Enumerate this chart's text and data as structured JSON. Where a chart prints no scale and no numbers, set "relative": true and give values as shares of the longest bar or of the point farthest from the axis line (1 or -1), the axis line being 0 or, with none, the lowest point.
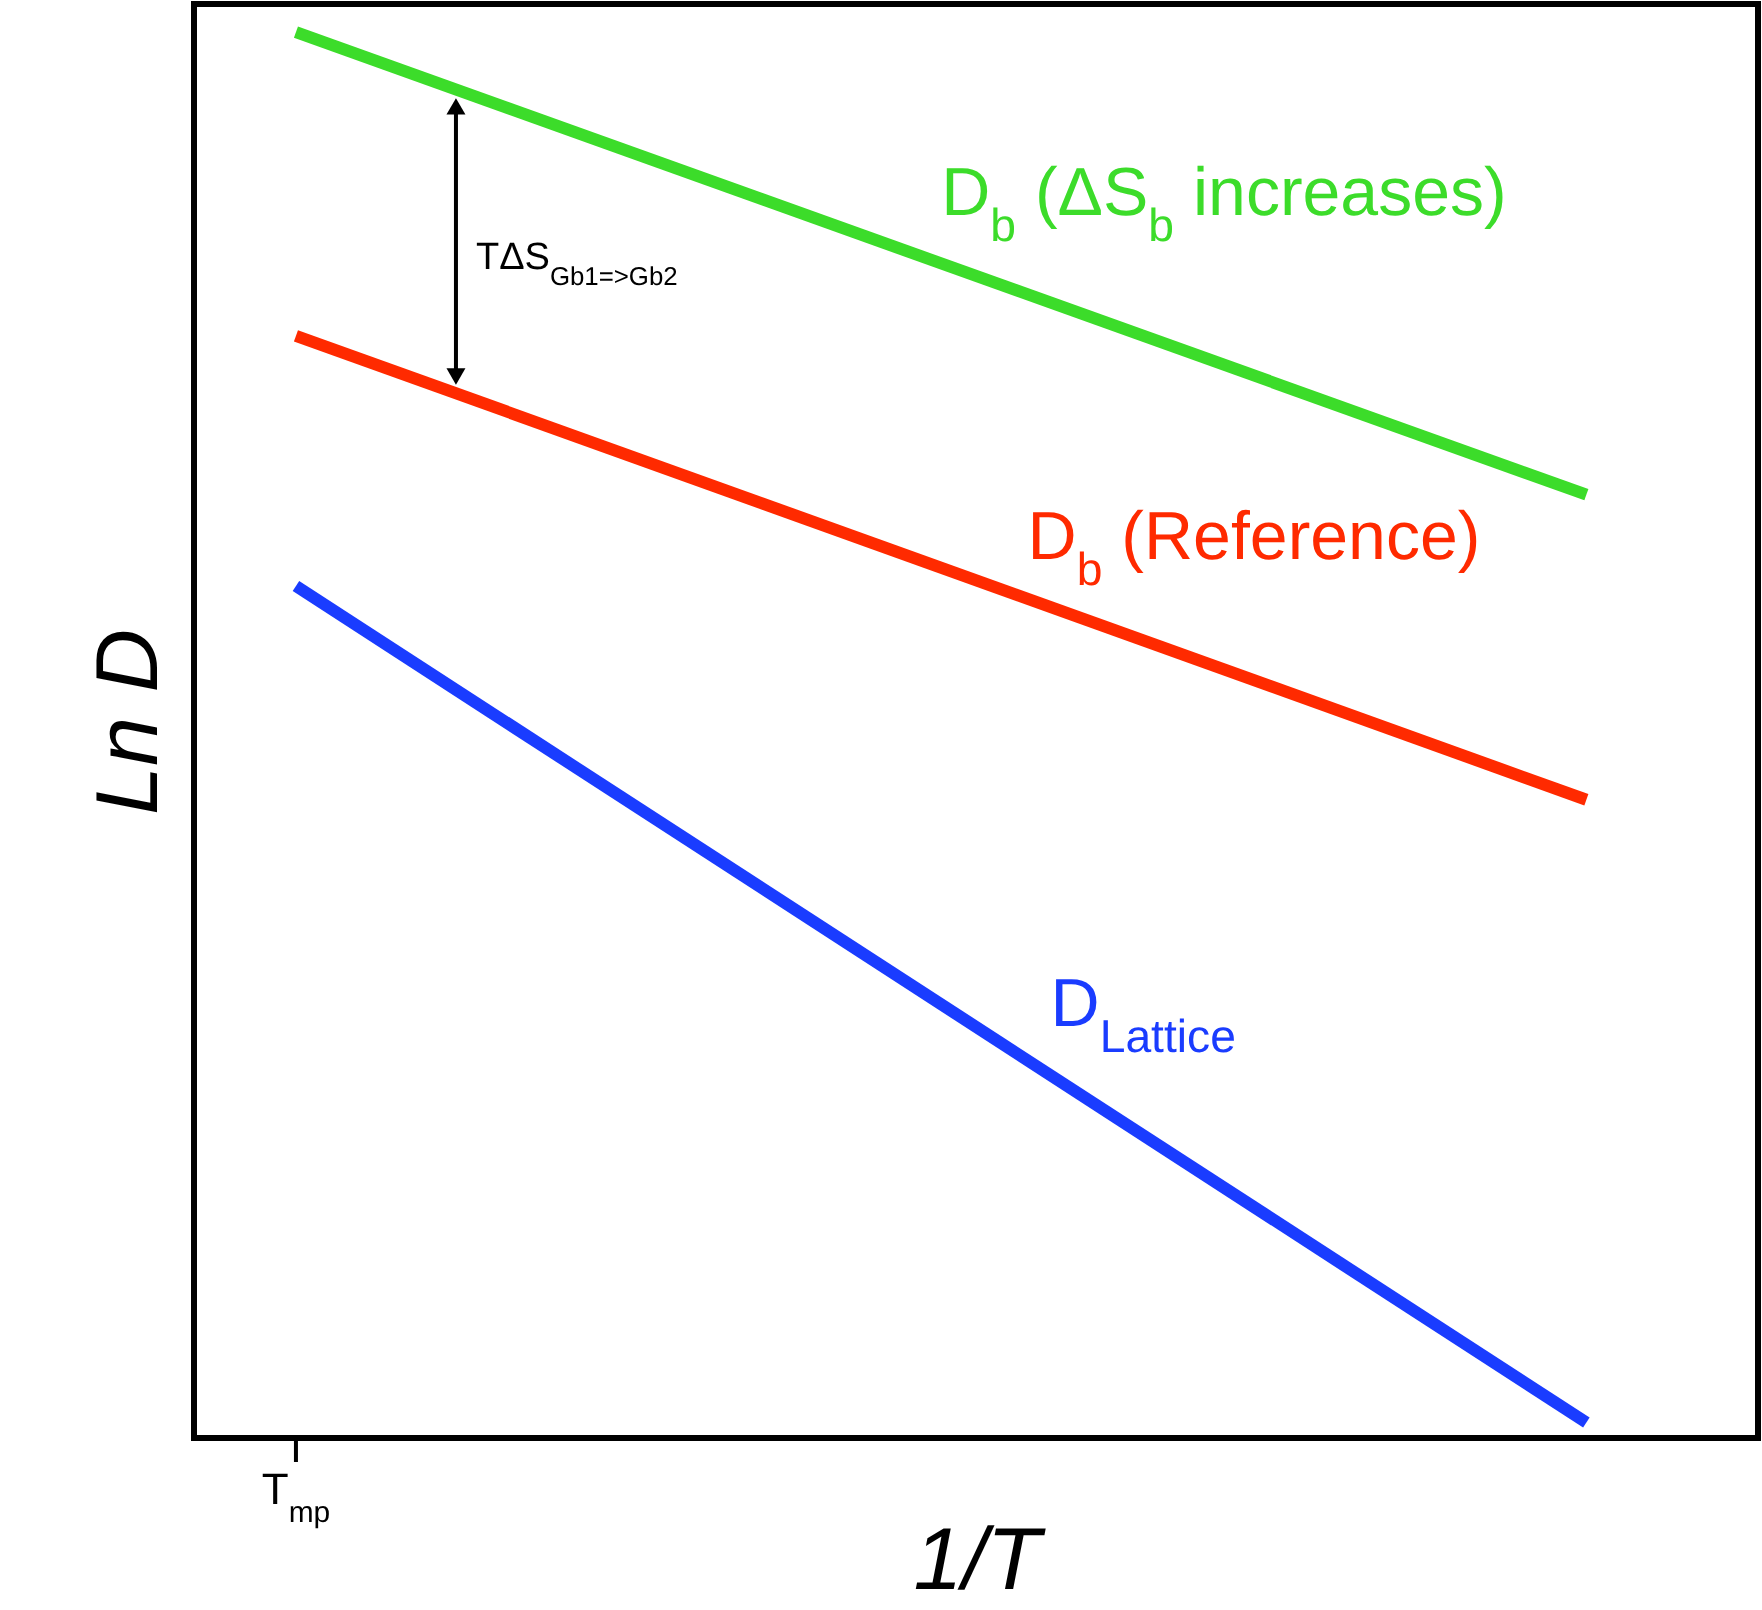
{
  "chart_data": {
    "type": "line",
    "relative": true,
    "xlabel": "1/T",
    "ylabel": "Ln D",
    "line_style": "solid",
    "categories": [
      null,
      null
    ],
    "series": [
      {
        "name": "D$_{b}$ (ΔS$_{b}$ increases)",
        "color": "#3cdc2a",
        "values": [
          1,
          0.671
        ]
      },
      {
        "name": "D$_{b}$ (Reference)",
        "color": "#ff2a00",
        "values": [
          0.784,
          0.454
        ]
      },
      {
        "name": "D$_{Lattice}$",
        "color": "#1a3cff",
        "values": [
          0.606,
          0.011
        ]
      }
    ],
    "annotations": [
      "T$_{mp}$",
      "TΔS$_{Gb1=>Gb2}$"
    ]
  }
}
